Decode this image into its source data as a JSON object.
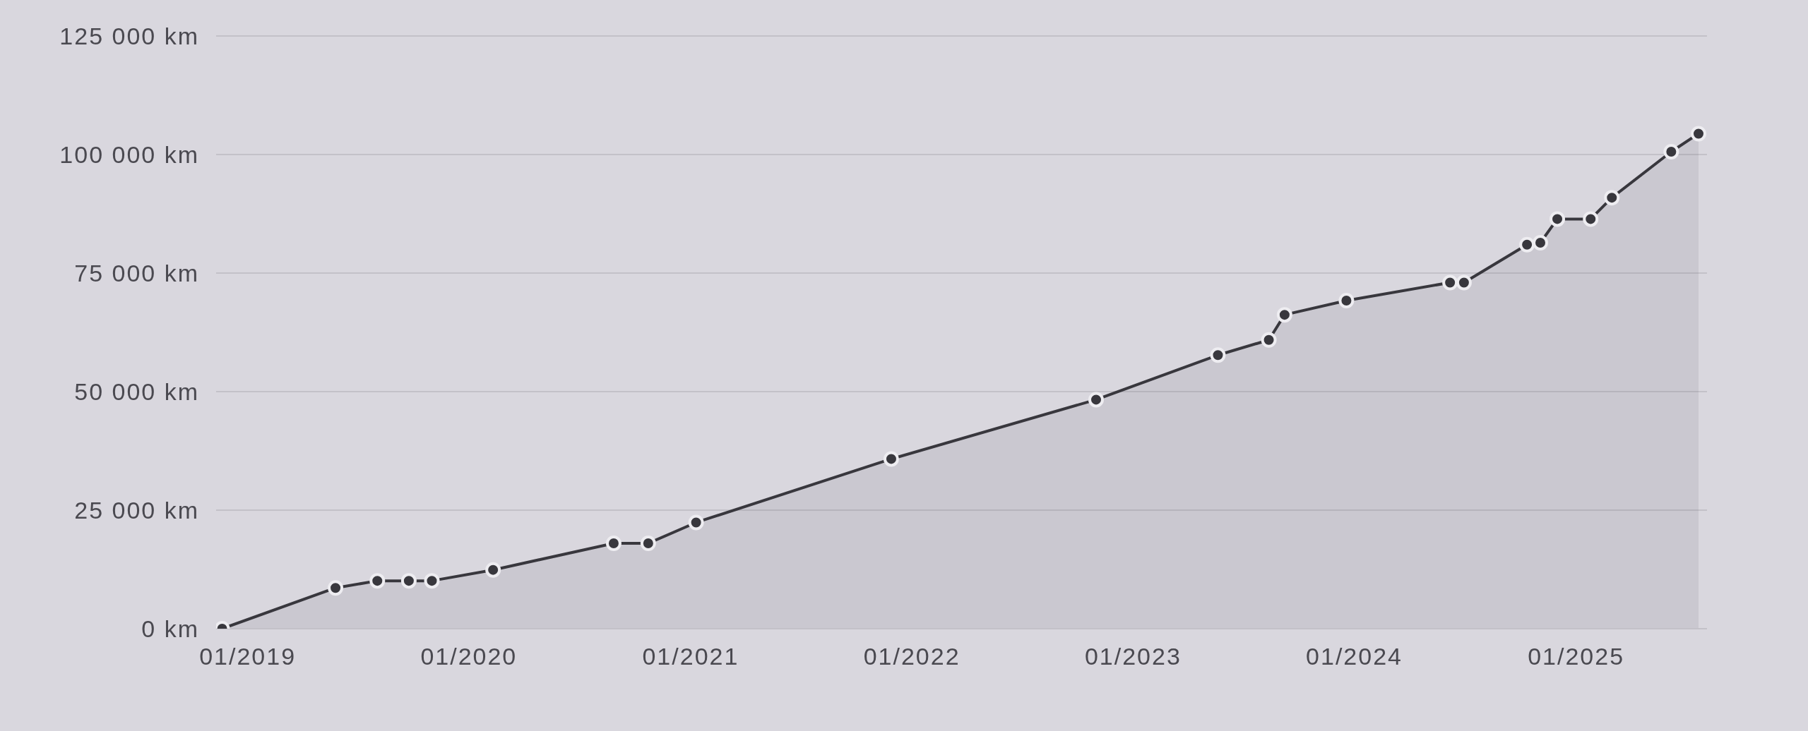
{
  "chart_data": {
    "type": "area",
    "x": [
      "2018-11-20",
      "2019-05-26",
      "2019-08-03",
      "2019-09-24",
      "2019-11-01",
      "2020-02-10",
      "2020-08-27",
      "2020-10-23",
      "2021-01-10",
      "2021-11-28",
      "2022-11-01",
      "2023-05-21",
      "2023-08-13",
      "2023-09-08",
      "2023-12-19",
      "2024-06-07",
      "2024-06-30",
      "2024-10-12",
      "2024-11-03",
      "2024-12-01",
      "2025-01-25",
      "2025-03-01",
      "2025-06-07",
      "2025-07-22"
    ],
    "series": [
      {
        "color": "#38373d",
        "values": [
          0,
          8600,
          10100,
          10100,
          10100,
          12400,
          18000,
          18000,
          22400,
          35800,
          48300,
          57700,
          60900,
          66200,
          69200,
          73000,
          73000,
          81000,
          81400,
          86400,
          86400,
          90900,
          100600,
          104400
        ]
      }
    ],
    "xlim": [
      "2018-11-10",
      "2025-08-05"
    ],
    "xticks": [
      {
        "value": "2019-01",
        "label": "01/2019"
      },
      {
        "value": "2020-01",
        "label": "01/2020"
      },
      {
        "value": "2021-01",
        "label": "01/2021"
      },
      {
        "value": "2022-01",
        "label": "01/2022"
      },
      {
        "value": "2023-01",
        "label": "01/2023"
      },
      {
        "value": "2024-01",
        "label": "01/2024"
      },
      {
        "value": "2025-01",
        "label": "01/2025"
      }
    ],
    "ylim": [
      0,
      125000
    ],
    "yticks": [
      {
        "value": 0,
        "label": "0 km"
      },
      {
        "value": 25000,
        "label": "25 000 km"
      },
      {
        "value": 50000,
        "label": "50 000 km"
      },
      {
        "value": 75000,
        "label": "75 000 km"
      },
      {
        "value": 100000,
        "label": "100 000 km"
      },
      {
        "value": 125000,
        "label": "125 000 km"
      }
    ],
    "grid": "y",
    "marker": "circle",
    "line_style": "solid"
  }
}
